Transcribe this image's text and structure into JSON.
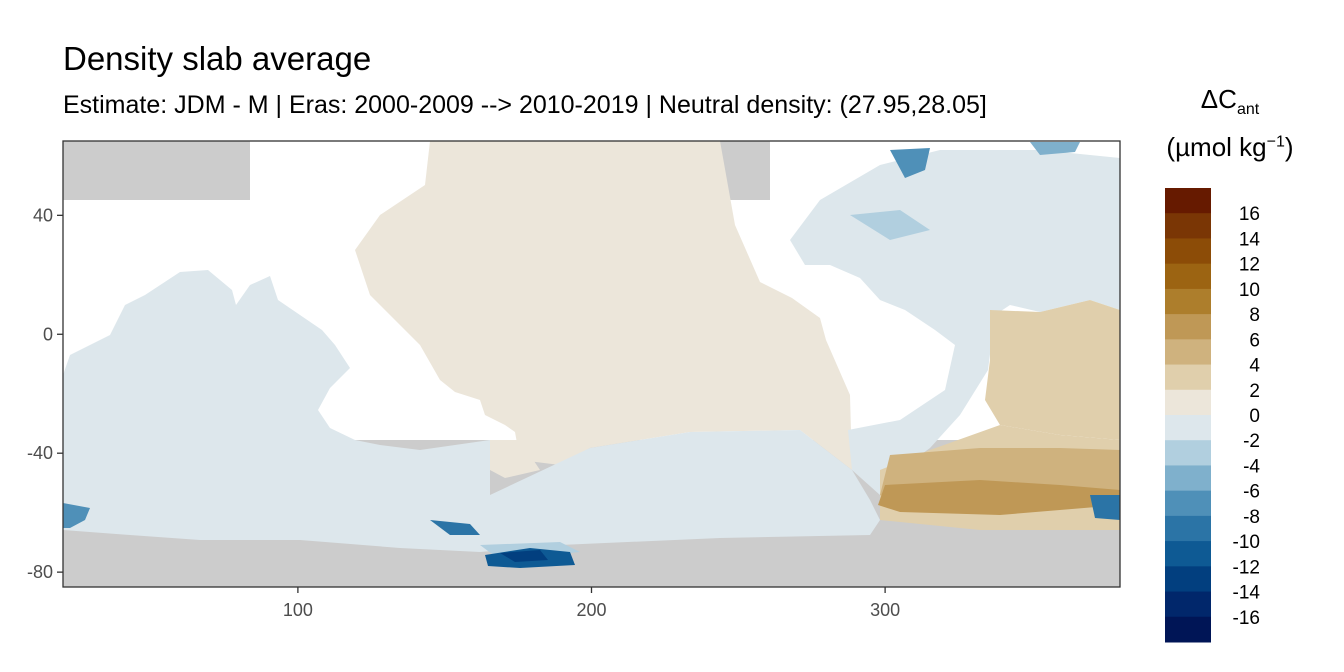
{
  "title": "Density slab average",
  "subtitle": "Estimate: JDM - M | Eras: 2000-2009 --> 2010-2019 | Neutral density: (27.95,28.05]",
  "x_axis": {
    "ticks": [
      100,
      200,
      300
    ],
    "range": [
      20,
      380
    ]
  },
  "y_axis": {
    "ticks": [
      40,
      0,
      -40,
      -80
    ],
    "range": [
      -85,
      65
    ]
  },
  "legend": {
    "title_main": "ΔC",
    "title_sub": "ant",
    "unit_main": "(µmol kg",
    "unit_sup": "−1",
    "unit_close": ")",
    "labels": [
      "16",
      "14",
      "12",
      "10",
      "8",
      "6",
      "4",
      "2",
      "0",
      "-2",
      "-4",
      "-6",
      "-8",
      "-10",
      "-12",
      "-14",
      "-16"
    ],
    "colors": [
      "#661a00",
      "#7a3605",
      "#8c4c07",
      "#9c6412",
      "#ad7e2c",
      "#bf9856",
      "#cfb27e",
      "#e0cfac",
      "#ece6da",
      "#dde7ec",
      "#b1cfdf",
      "#7fb0cc",
      "#4f90b8",
      "#2b74a6",
      "#0e5a94",
      "#023f7f",
      "#01276b",
      "#001556"
    ]
  },
  "colors": {
    "land": "#cccccc",
    "ocean_missing": "#ffffff",
    "pacific_positive_small": "#ece6da",
    "negative_small": "#dde7ec",
    "atlantic_south_positive": "#cfb27e"
  }
}
